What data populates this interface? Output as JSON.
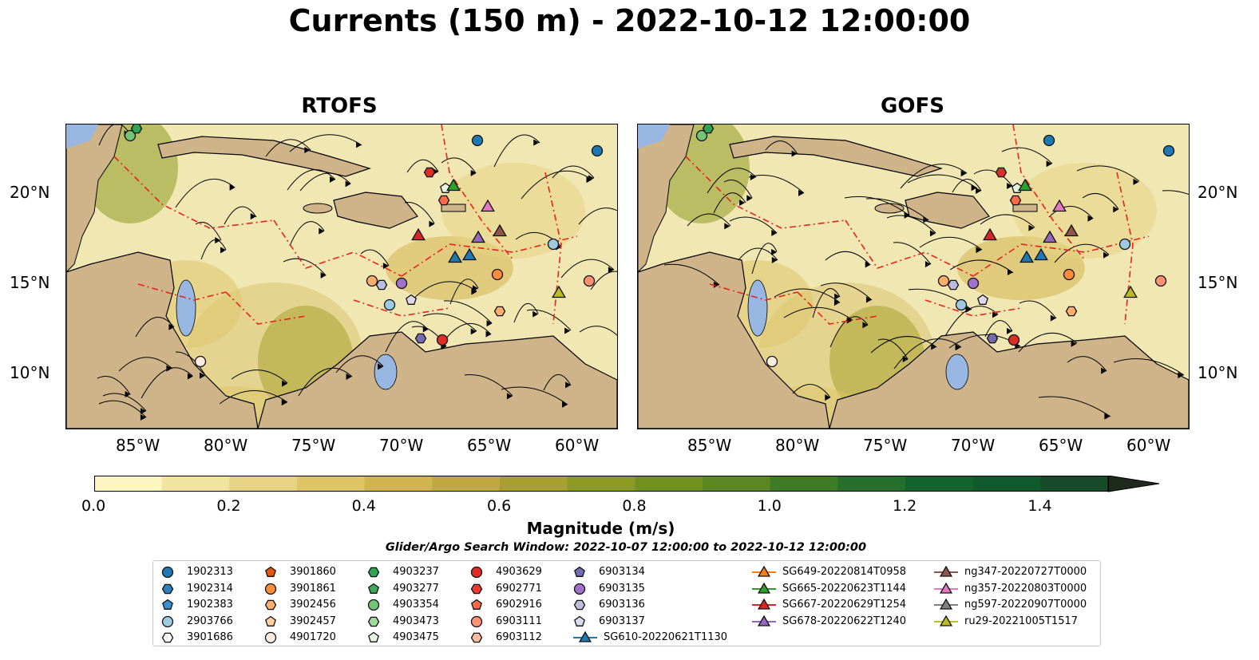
{
  "title": "Currents (150 m) - 2022-10-12 12:00:00",
  "panels": [
    {
      "title": "RTOFS"
    },
    {
      "title": "GOFS"
    }
  ],
  "axes": {
    "lat_labels": [
      "20°N",
      "15°N",
      "10°N"
    ],
    "lon_labels": [
      "85°W",
      "80°W",
      "75°W",
      "70°W",
      "65°W",
      "60°W"
    ]
  },
  "colorbar": {
    "label": "Magnitude (m/s)",
    "ticks": [
      "0.0",
      "0.2",
      "0.4",
      "0.6",
      "0.8",
      "1.0",
      "1.2",
      "1.4"
    ],
    "range": [
      0.0,
      1.5
    ],
    "step": 0.1,
    "extend": "max",
    "colors": [
      "#fdf6c3",
      "#f1e3a0",
      "#e6d383",
      "#dcc467",
      "#d1b44e",
      "#bfa83d",
      "#a8a02e",
      "#8d9a21",
      "#729020",
      "#5a8623",
      "#3f7b26",
      "#256e2c",
      "#14632f",
      "#115a2e",
      "#174a29",
      "#1c3a22",
      "#1e2b1c"
    ]
  },
  "search_window": "Glider/Argo Search Window: 2022-10-07 12:00:00 to 2022-10-12 12:00:00",
  "colors": {
    "land": "#cfb48a",
    "water_bodies": "#97b6e1",
    "eez_lines": "#e8231d"
  },
  "legend": [
    {
      "label": "1902313",
      "marker": "circle",
      "color": "#1f77b4"
    },
    {
      "label": "1902314",
      "marker": "hexagon",
      "color": "#2c7fb8"
    },
    {
      "label": "1902383",
      "marker": "pentagon",
      "color": "#3a8fd0"
    },
    {
      "label": "2903766",
      "marker": "circle",
      "color": "#9ecae1"
    },
    {
      "label": "3901686",
      "marker": "hexagon",
      "color": "#ffffff"
    },
    {
      "label": "3901860",
      "marker": "pentagon",
      "color": "#e6550d"
    },
    {
      "label": "3901861",
      "marker": "circle",
      "color": "#fd8d3c"
    },
    {
      "label": "3902456",
      "marker": "hexagon",
      "color": "#fdae6b"
    },
    {
      "label": "3902457",
      "marker": "pentagon",
      "color": "#fdd0a2"
    },
    {
      "label": "4901720",
      "marker": "circle",
      "color": "#feedde"
    },
    {
      "label": "4903237",
      "marker": "hexagon",
      "color": "#31a354"
    },
    {
      "label": "4903277",
      "marker": "pentagon",
      "color": "#41ab5d"
    },
    {
      "label": "4903354",
      "marker": "circle",
      "color": "#74c476"
    },
    {
      "label": "4903473",
      "marker": "hexagon",
      "color": "#a1d99b"
    },
    {
      "label": "4903475",
      "marker": "pentagon",
      "color": "#e5f5e0"
    },
    {
      "label": "4903629",
      "marker": "circle",
      "color": "#de2d26"
    },
    {
      "label": "6902771",
      "marker": "hexagon",
      "color": "#ef3b2c"
    },
    {
      "label": "6902916",
      "marker": "pentagon",
      "color": "#fb6a4a"
    },
    {
      "label": "6903111",
      "marker": "circle",
      "color": "#fc9272"
    },
    {
      "label": "6903112",
      "marker": "hexagon",
      "color": "#fcbba1"
    },
    {
      "label": "6903134",
      "marker": "pentagon",
      "color": "#756bb1"
    },
    {
      "label": "6903135",
      "marker": "circle",
      "color": "#9e72c8"
    },
    {
      "label": "6903136",
      "marker": "hexagon",
      "color": "#bcbddc"
    },
    {
      "label": "6903137",
      "marker": "pentagon",
      "color": "#dadaeb"
    },
    {
      "label": "SG610-20220621T1130",
      "marker": "triangle-line",
      "color": "#1f77b4"
    },
    {
      "label": "SG649-20220814T0958",
      "marker": "triangle-line",
      "color": "#ff7f0e"
    },
    {
      "label": "SG665-20220623T1144",
      "marker": "triangle-line",
      "color": "#2ca02c"
    },
    {
      "label": "SG667-20220629T1254",
      "marker": "triangle-line",
      "color": "#d62728"
    },
    {
      "label": "SG678-20220622T1240",
      "marker": "triangle-line",
      "color": "#9467bd"
    },
    {
      "label": "ng347-20220727T0000",
      "marker": "triangle-line",
      "color": "#8c564b"
    },
    {
      "label": "ng357-20220803T0000",
      "marker": "triangle-line",
      "color": "#e377c2"
    },
    {
      "label": "ng597-20220907T0000",
      "marker": "triangle-line",
      "color": "#7f7f7f"
    },
    {
      "label": "ru29-20221005T1517",
      "marker": "triangle-line",
      "color": "#bcbd22"
    }
  ]
}
